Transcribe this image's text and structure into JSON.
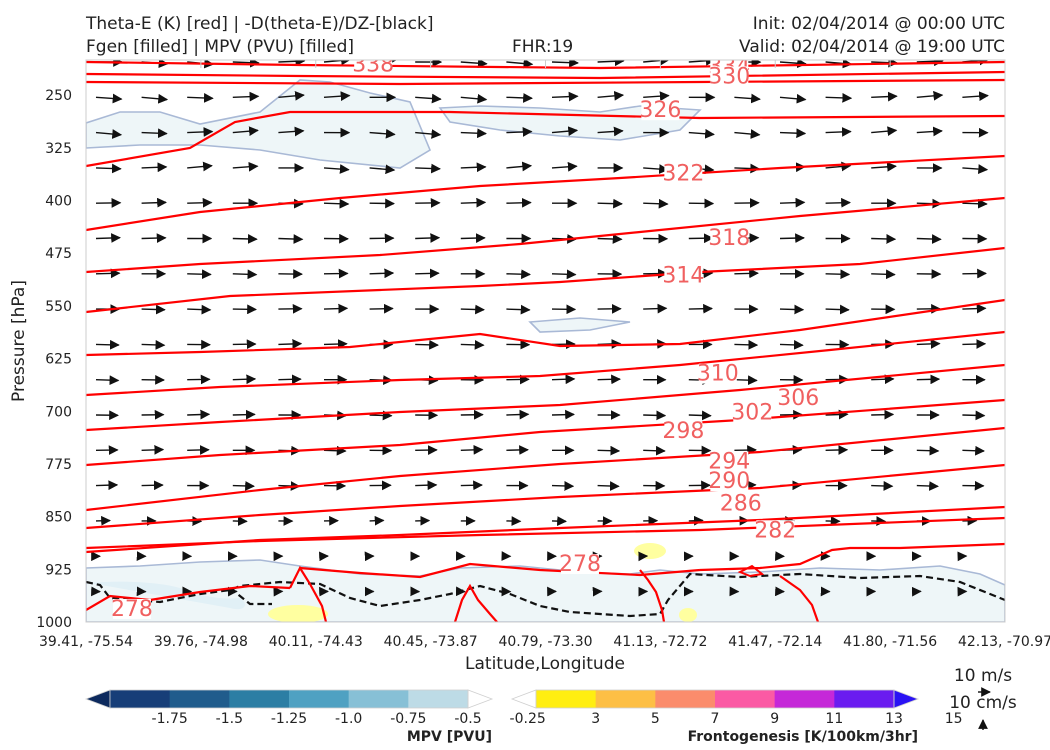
{
  "header": {
    "title_left_1": "Theta-E (K) [red] | -D(theta-E)/DZ-[black]",
    "title_left_2": "Fgen [filled] | MPV (PVU) [filled]",
    "fhr": "FHR:19",
    "init": "Init: 02/04/2014 @ 00:00 UTC",
    "valid": "Valid: 02/04/2014 @ 19:00 UTC"
  },
  "chart_data": {
    "type": "cross-section",
    "ylabel": "Pressure [hPa]",
    "xlabel": "Latitude,Longitude",
    "y_ticks": [
      250,
      325,
      400,
      475,
      550,
      625,
      700,
      775,
      850,
      925,
      1000
    ],
    "ylim": [
      1000,
      200
    ],
    "x_ticks": [
      "39.41, -75.54",
      "39.76, -74.98",
      "40.11, -74.43",
      "40.45, -73.87",
      "40.79, -73.30",
      "41.13, -72.72",
      "41.47, -72.14",
      "41.80, -71.56",
      "42.13, -70.97"
    ],
    "theta_e_contour_labels": [
      {
        "value": "338",
        "x_index": 2.5,
        "p": 205
      },
      {
        "value": "334",
        "x_index": 5.6,
        "p": 208
      },
      {
        "value": "330",
        "x_index": 5.6,
        "p": 222
      },
      {
        "value": "338",
        "x_index": 10.8,
        "p": 200
      },
      {
        "value": "326",
        "x_index": 5.0,
        "p": 270
      },
      {
        "value": "322",
        "x_index": 5.2,
        "p": 360
      },
      {
        "value": "318",
        "x_index": 5.6,
        "p": 452
      },
      {
        "value": "314",
        "x_index": 5.2,
        "p": 505
      },
      {
        "value": "310",
        "x_index": 5.5,
        "p": 645
      },
      {
        "value": "306",
        "x_index": 6.2,
        "p": 680
      },
      {
        "value": "302",
        "x_index": 5.8,
        "p": 700
      },
      {
        "value": "298",
        "x_index": 5.2,
        "p": 727
      },
      {
        "value": "294",
        "x_index": 5.6,
        "p": 770
      },
      {
        "value": "290",
        "x_index": 5.6,
        "p": 798
      },
      {
        "value": "286",
        "x_index": 5.7,
        "p": 830
      },
      {
        "value": "282",
        "x_index": 6.0,
        "p": 868
      },
      {
        "value": "278",
        "x_index": 4.3,
        "p": 916
      },
      {
        "value": "278",
        "x_index": 9.0,
        "p": 903
      },
      {
        "value": "278",
        "x_index": 0.4,
        "p": 980
      }
    ],
    "mpv_colorbar": {
      "title": "MPV [PVU]",
      "ticks": [
        "-1.75",
        "-1.5",
        "-1.25",
        "-1.0",
        "-0.75",
        "-0.5",
        "-0.25"
      ],
      "colors": [
        "#0d2a5e",
        "#173e78",
        "#205c8c",
        "#2c7ea4",
        "#4fa1c2",
        "#87c0d6",
        "#bddbe6",
        "#ffffff"
      ]
    },
    "fgen_colorbar": {
      "title": "Frontogenesis [K/100km/3hr]",
      "ticks": [
        "3",
        "5",
        "7",
        "9",
        "11",
        "13",
        "15"
      ],
      "colors": [
        "#ffffff",
        "#ffee11",
        "#fdbf45",
        "#fb8c6c",
        "#fb5aa4",
        "#c528d8",
        "#6a1cf0",
        "#2a12f4"
      ]
    },
    "reference_vectors": {
      "horizontal": "10 m/s",
      "vertical": "10 cm/s"
    },
    "colors": {
      "theta_e": "#ff0000",
      "theta_e_label": "#f06060",
      "arrows": "#111111",
      "mpv_fill": "#eef6f8",
      "mpv_outline": "#a9b9d6",
      "fgen_fill": "#ffffa0"
    }
  }
}
